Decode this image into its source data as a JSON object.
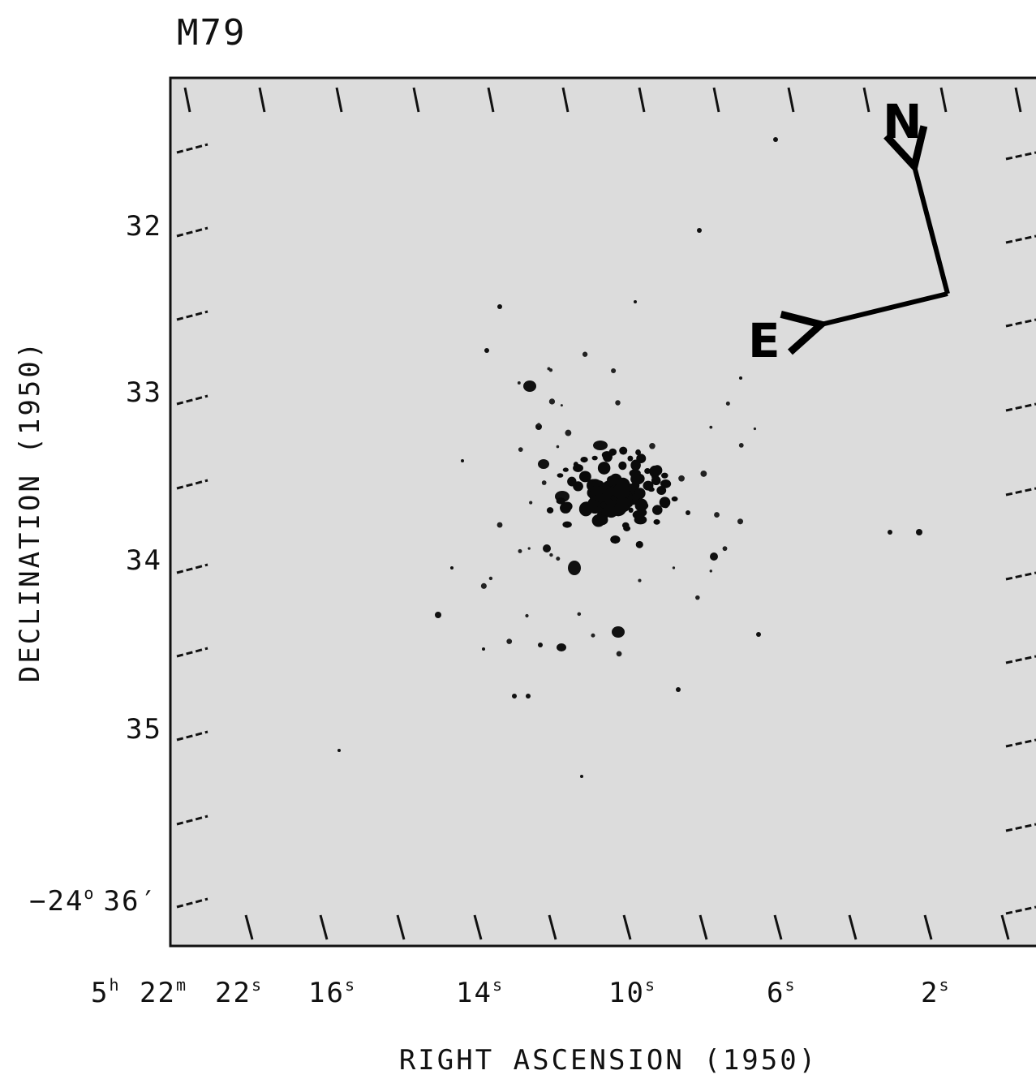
{
  "title": "M79",
  "y_axis": {
    "title": "DECLINATION (1950)",
    "labels": [
      "32",
      "33",
      "34",
      "35"
    ],
    "corner_label": {
      "degrees": "−24",
      "degree_mark": "o",
      "minutes": "36′"
    }
  },
  "x_axis": {
    "title": "RIGHT ASCENSION (1950)",
    "labels": [
      {
        "text": "5",
        "unit": "h"
      },
      {
        "text": "22",
        "unit": "m"
      },
      {
        "text": "22",
        "unit": "s"
      },
      {
        "text": "16",
        "unit": "s"
      },
      {
        "text": "14",
        "unit": "s"
      },
      {
        "text": "10",
        "unit": "s"
      },
      {
        "text": "6",
        "unit": "s"
      },
      {
        "text": "2",
        "unit": "s"
      }
    ]
  },
  "compass": {
    "north": "N",
    "east": "E"
  }
}
